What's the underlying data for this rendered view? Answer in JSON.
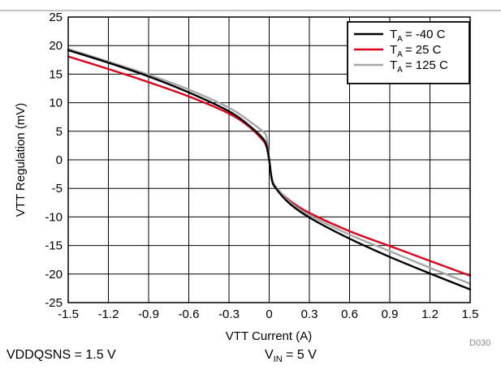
{
  "chart_data": {
    "type": "line",
    "xlabel": "VTT Current (A)",
    "ylabel": "VTT Regulation (mV)",
    "xlim": [
      -1.5,
      1.5
    ],
    "ylim": [
      -25,
      25
    ],
    "x_ticks": [
      "-1.5",
      "-1.2",
      "-0.9",
      "-0.6",
      "-0.3",
      "0",
      "0.3",
      "0.6",
      "0.9",
      "1.2",
      "1.5"
    ],
    "y_ticks": [
      "25",
      "20",
      "15",
      "10",
      "5",
      "0",
      "-5",
      "-10",
      "-15",
      "-20",
      "-25"
    ],
    "grid": true,
    "legend_position": "top-right",
    "series": [
      {
        "legend_sub": "A",
        "legend_value": "= -40 C",
        "color": "#000000",
        "x": [
          -1.5,
          -1.2,
          -0.9,
          -0.6,
          -0.3,
          -0.15,
          -0.05,
          -0.02,
          0,
          0.02,
          0.05,
          0.15,
          0.3,
          0.6,
          0.9,
          1.2,
          1.5
        ],
        "y": [
          19.2,
          17,
          14.6,
          11.8,
          8.5,
          6,
          3.8,
          2.5,
          0,
          -3.5,
          -5,
          -7.6,
          -10.1,
          -13.8,
          -17,
          -19.9,
          -22.7
        ]
      },
      {
        "legend_sub": "A",
        "legend_value": "= 25 C",
        "color": "#e3001b",
        "x": [
          -1.5,
          -1.2,
          -0.9,
          -0.6,
          -0.3,
          -0.15,
          -0.05,
          -0.02,
          0,
          0.02,
          0.05,
          0.15,
          0.3,
          0.6,
          0.9,
          1.2,
          1.5
        ],
        "y": [
          18.1,
          15.9,
          13.6,
          11.1,
          8.1,
          5.8,
          3.5,
          2.3,
          0,
          -3.3,
          -4.8,
          -7.1,
          -9.3,
          -12.5,
          -15.1,
          -17.7,
          -20.3
        ]
      },
      {
        "legend_sub": "A",
        "legend_value": "= 125 C",
        "color": "#a6a6a6",
        "x": [
          -1.5,
          -1.2,
          -0.9,
          -0.6,
          -0.3,
          -0.15,
          -0.05,
          -0.02,
          0,
          0.02,
          0.05,
          0.15,
          0.3,
          0.6,
          0.9,
          1.2,
          1.5
        ],
        "y": [
          19.4,
          17.2,
          14.9,
          12.3,
          9.1,
          6.8,
          5,
          4,
          0,
          -3.2,
          -4.7,
          -7.3,
          -9.7,
          -13.1,
          -16,
          -18.9,
          -21.7
        ]
      }
    ]
  },
  "legend_prefix": "T",
  "figure_code": "D030",
  "notes": {
    "vddqsns": "VDDQSNS = 1.5 V",
    "vin_main": "V",
    "vin_sub": "IN",
    "vin_value": " = 5 V"
  }
}
